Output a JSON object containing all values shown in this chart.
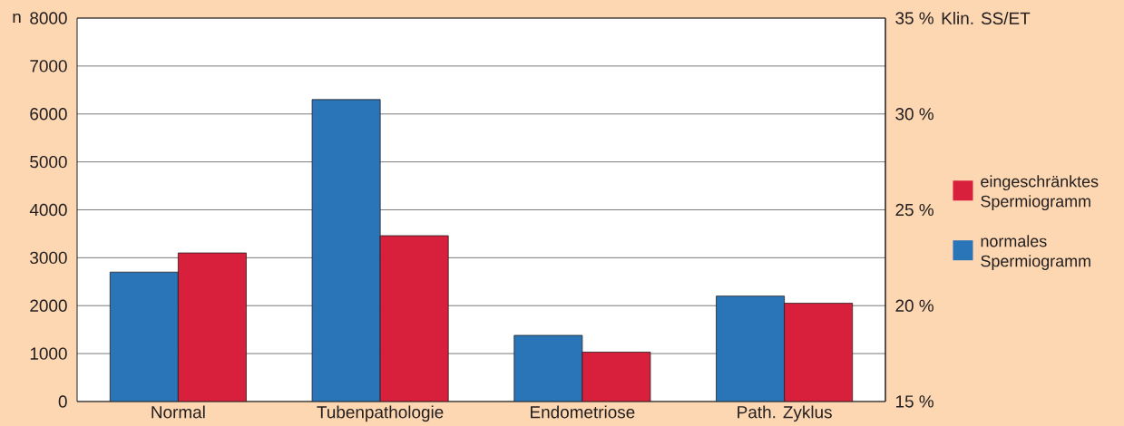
{
  "chart_data": {
    "type": "bar",
    "categories": [
      "Normal",
      "Tubenpathologie",
      "Endometriose",
      "Path. Zyklus"
    ],
    "series": [
      {
        "name": "normales Spermiogramm",
        "color": "#2a74b8",
        "values": [
          2700,
          6300,
          1380,
          2200
        ]
      },
      {
        "name": "eingeschränktes Spermiogramm",
        "color": "#d81f3b",
        "values": [
          3100,
          3460,
          1030,
          2050
        ]
      }
    ],
    "ylabel": "n",
    "y2label": "Klin. SS/ET",
    "ylim": [
      0,
      8000
    ],
    "yticks": [
      0,
      1000,
      2000,
      3000,
      4000,
      5000,
      6000,
      7000,
      8000
    ],
    "y2lim": [
      15,
      35
    ],
    "y2ticks": [
      {
        "value": 15,
        "label": "15 %"
      },
      {
        "value": 20,
        "label": "20 %"
      },
      {
        "value": 25,
        "label": "25 %"
      },
      {
        "value": 30,
        "label": "30 %"
      },
      {
        "value": 35,
        "label": "35 %"
      }
    ],
    "grid": "y",
    "legend": "right"
  }
}
